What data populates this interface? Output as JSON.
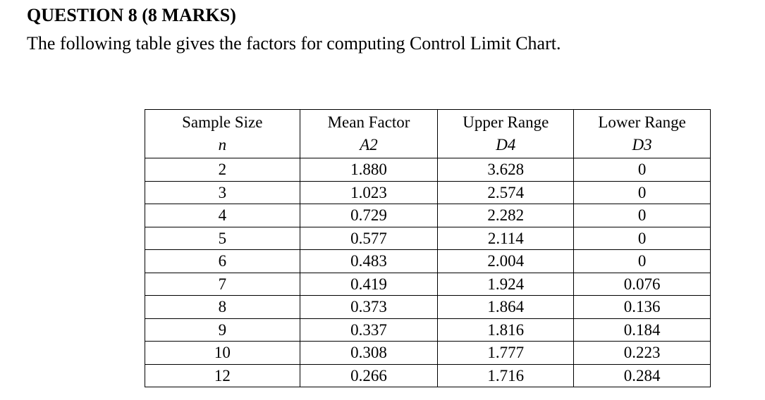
{
  "question": {
    "heading": "QUESTION 8 (8 MARKS)",
    "text": "The following table gives the factors for computing Control Limit Chart."
  },
  "table": {
    "headers": [
      {
        "label": "Sample Size",
        "symbol": "n"
      },
      {
        "label": "Mean Factor",
        "symbol": "A2"
      },
      {
        "label": "Upper Range",
        "symbol": "D4"
      },
      {
        "label": "Lower Range",
        "symbol": "D3"
      }
    ],
    "rows": [
      [
        "2",
        "1.880",
        "3.628",
        "0"
      ],
      [
        "3",
        "1.023",
        "2.574",
        "0"
      ],
      [
        "4",
        "0.729",
        "2.282",
        "0"
      ],
      [
        "5",
        "0.577",
        "2.114",
        "0"
      ],
      [
        "6",
        "0.483",
        "2.004",
        "0"
      ],
      [
        "7",
        "0.419",
        "1.924",
        "0.076"
      ],
      [
        "8",
        "0.373",
        "1.864",
        "0.136"
      ],
      [
        "9",
        "0.337",
        "1.816",
        "0.184"
      ],
      [
        "10",
        "0.308",
        "1.777",
        "0.223"
      ],
      [
        "12",
        "0.266",
        "1.716",
        "0.284"
      ]
    ]
  }
}
